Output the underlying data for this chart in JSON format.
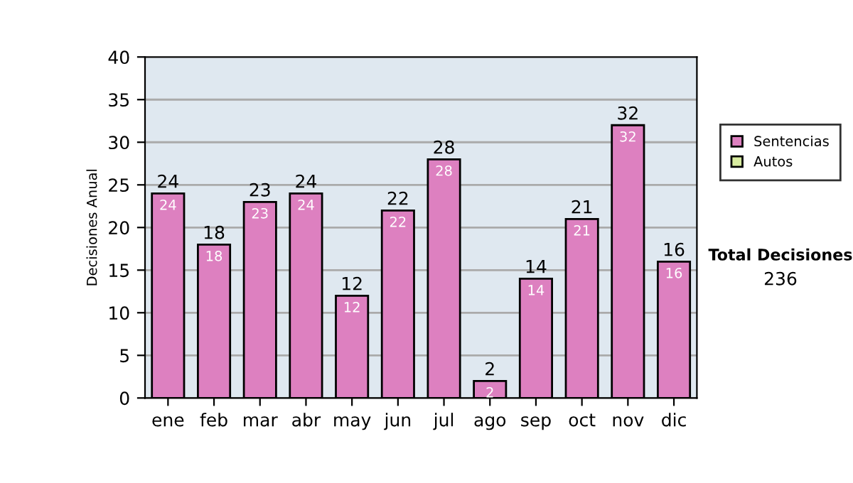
{
  "chart_data": {
    "type": "bar",
    "ylabel": "Decisiones Anual",
    "categories": [
      "ene",
      "feb",
      "mar",
      "abr",
      "may",
      "jun",
      "jul",
      "ago",
      "sep",
      "oct",
      "nov",
      "dic"
    ],
    "series": [
      {
        "name": "Sentencias",
        "color": "#dd80c0",
        "values": [
          24,
          18,
          23,
          24,
          12,
          22,
          28,
          2,
          14,
          21,
          32,
          16
        ],
        "value_labels": [
          "24",
          "18",
          "23",
          "24",
          "12",
          "22",
          "28",
          "2",
          "14",
          "21",
          "32",
          "16"
        ]
      },
      {
        "name": "Autos",
        "color": "#d8eca0",
        "values": [
          0,
          0,
          0,
          0,
          0,
          0,
          0,
          0,
          0,
          0,
          0,
          0
        ]
      }
    ],
    "stacked": true,
    "totals": [
      "24",
      "18",
      "23",
      "24",
      "12",
      "22",
      "28",
      "2",
      "14",
      "21",
      "32",
      "16"
    ],
    "ylim": [
      0,
      40
    ],
    "yticks": [
      0,
      5,
      10,
      15,
      20,
      25,
      30,
      35,
      40
    ],
    "grid": "y",
    "legend": "right",
    "annotations": [
      "Total Decisiones",
      "236"
    ]
  }
}
